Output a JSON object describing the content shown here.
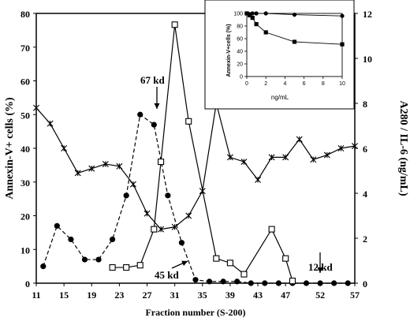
{
  "chart_data": {
    "main": {
      "type": "line",
      "xlabel": "Fraction number (S-200)",
      "ylabel_left": "Annexin-V+ cells (%)",
      "ylabel_right": "A280 / IL-6 (ng/mL)",
      "x_ticks": [
        11,
        15,
        19,
        23,
        27,
        31,
        35,
        39,
        43,
        47,
        52,
        57
      ],
      "x_tick_labels": [
        "11",
        "15",
        "19",
        "23",
        "27",
        "31",
        "35",
        "39",
        "43",
        "47",
        "52",
        "57"
      ],
      "x_range": [
        11,
        57
      ],
      "y_left_range": [
        0,
        80
      ],
      "y_left_ticks": [
        "0",
        "10",
        "20",
        "30",
        "40",
        "50",
        "60",
        "70",
        "80"
      ],
      "y_right_range": [
        0,
        12
      ],
      "y_right_ticks": [
        "0",
        "2",
        "4",
        "6",
        "8",
        "10",
        "12"
      ],
      "series": [
        {
          "marker": "filled-circle",
          "line": "dashed",
          "axis": "left",
          "x": [
            12,
            14,
            16,
            18,
            20,
            22,
            24,
            26,
            28,
            30,
            32,
            34,
            36,
            38,
            40,
            42,
            44,
            46,
            48,
            50,
            52,
            54,
            56
          ],
          "y": [
            5,
            17,
            13,
            7,
            7,
            13,
            26,
            50,
            47,
            26,
            12,
            1,
            0.5,
            0.5,
            0.5,
            0,
            0,
            0,
            0,
            0,
            0,
            0,
            0
          ]
        },
        {
          "marker": "open-square",
          "line": "solid",
          "axis": "right",
          "x": [
            22,
            24,
            26,
            28,
            29,
            31,
            33,
            37,
            39,
            41,
            45,
            47,
            48
          ],
          "y": [
            0.7,
            0.7,
            0.8,
            2.4,
            5.4,
            11.5,
            7.2,
            1.1,
            0.9,
            0.4,
            2.4,
            1.1,
            0.1
          ]
        },
        {
          "marker": "star",
          "line": "solid",
          "axis": "right",
          "x": [
            11,
            13,
            15,
            17,
            19,
            21,
            23,
            25,
            27,
            29,
            31,
            33,
            35,
            37,
            39,
            41,
            43,
            45,
            47,
            49,
            51,
            53,
            55,
            57
          ],
          "y": [
            7.8,
            7.1,
            6.0,
            4.9,
            5.1,
            5.3,
            5.2,
            4.4,
            3.1,
            2.4,
            2.5,
            3.0,
            4.1,
            8.0,
            5.6,
            5.4,
            4.6,
            5.6,
            5.6,
            6.4,
            5.5,
            5.7,
            6.0,
            6.1
          ]
        }
      ],
      "annotations": [
        {
          "text": "67 kd",
          "x": 26.5,
          "y": 55,
          "arrow_to": [
            27,
            47
          ]
        },
        {
          "text": "45 kd",
          "x": 30,
          "y": 4,
          "arrow_to": [
            32,
            12
          ]
        },
        {
          "text": "12 kd",
          "x": 51,
          "y": 8,
          "arrow_to": [
            50.5,
            0.5
          ]
        }
      ]
    },
    "inset": {
      "type": "line",
      "xlabel": "ng/mL",
      "ylabel": "Annexin-V+cells (%)",
      "x_range": [
        0,
        10
      ],
      "x_ticks": [
        "0",
        "2",
        "4",
        "6",
        "8",
        "10"
      ],
      "y_range": [
        0,
        100
      ],
      "y_ticks": [
        "0",
        "20",
        "40",
        "60",
        "80",
        "100"
      ],
      "series": [
        {
          "marker": "filled-circle",
          "x": [
            0,
            0.3,
            0.6,
            1,
            2,
            5,
            10
          ],
          "y": [
            100,
            99,
            100,
            100,
            100,
            98,
            96
          ]
        },
        {
          "marker": "filled-square",
          "x": [
            0,
            0.3,
            0.6,
            1,
            2,
            5,
            10
          ],
          "y": [
            100,
            97,
            93,
            83,
            70,
            55,
            51
          ]
        }
      ]
    }
  }
}
